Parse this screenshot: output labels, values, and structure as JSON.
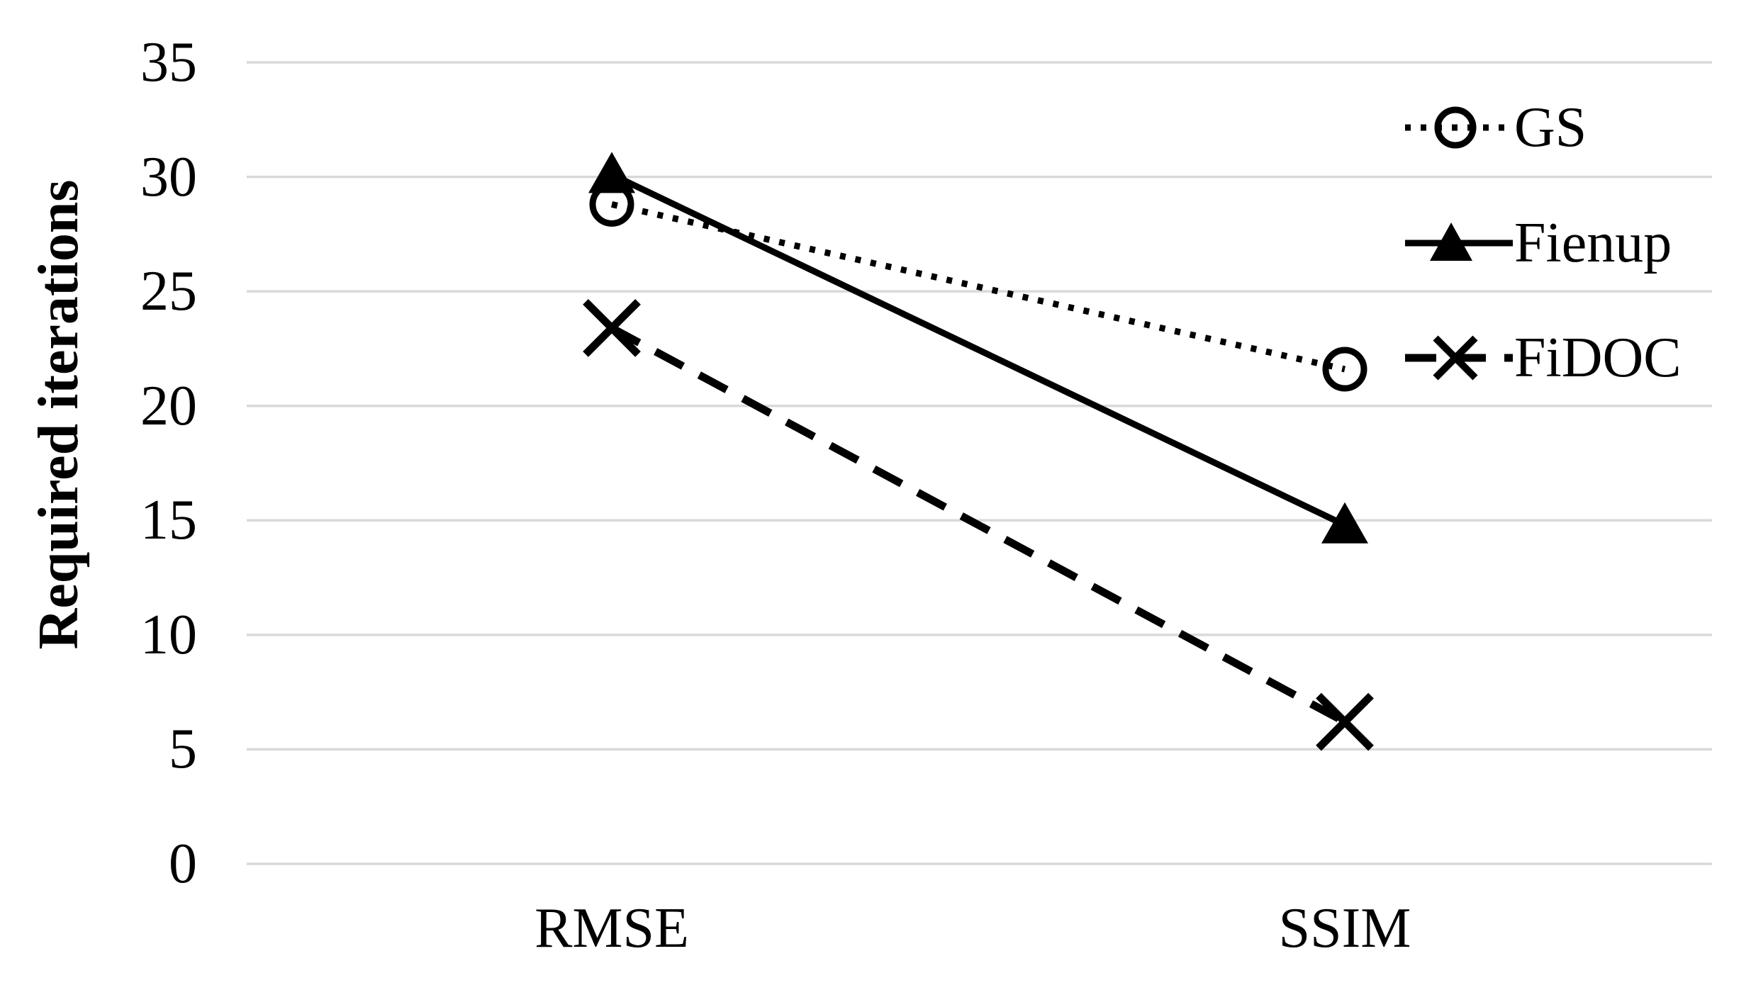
{
  "chart_data": {
    "type": "line",
    "title": "",
    "xlabel": "",
    "ylabel": "Required iterations",
    "categories": [
      "RMSE",
      "SSIM"
    ],
    "series": [
      {
        "name": "GS",
        "values": [
          28.8,
          21.6
        ],
        "line_style": "dotted",
        "marker": "open-circle"
      },
      {
        "name": "Fienup",
        "values": [
          30.1,
          14.8
        ],
        "line_style": "solid",
        "marker": "filled-triangle"
      },
      {
        "name": "FiDOC",
        "values": [
          23.4,
          6.2
        ],
        "line_style": "dashed",
        "marker": "x"
      }
    ],
    "ylim": [
      0,
      35
    ],
    "yticks": [
      35,
      30,
      25,
      20,
      15,
      10,
      5,
      0
    ],
    "grid": "horizontal",
    "legend_position": "right",
    "colors": {
      "series": "#000000",
      "gridline": "#d9d9d9",
      "background": "#ffffff",
      "text": "#000000"
    }
  }
}
